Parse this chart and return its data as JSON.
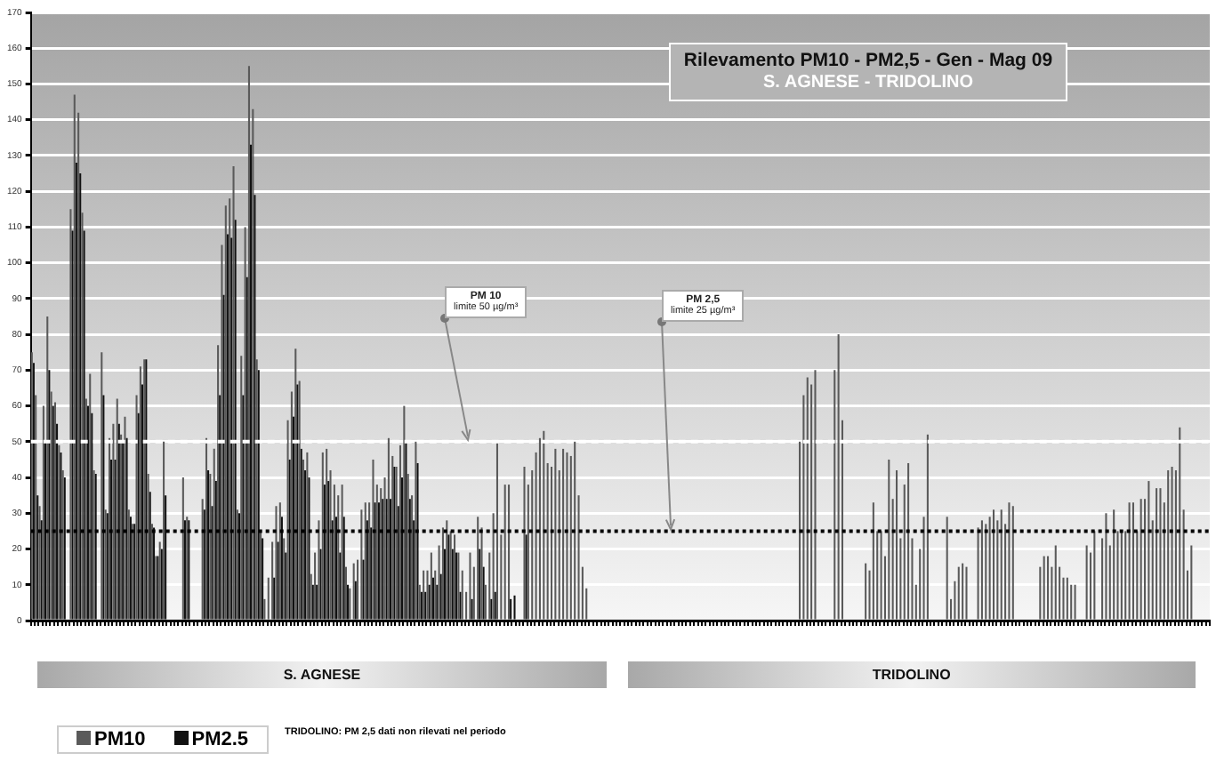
{
  "chart_data": {
    "type": "bar",
    "title": "Rilevamento PM10 - PM2,5 - Gen - Mag 09",
    "subtitle": "S. AGNESE - TRIDOLINO",
    "categories": [
      null,
      null,
      null,
      null,
      null,
      null,
      null,
      null,
      null,
      null,
      null,
      null,
      null,
      null,
      null,
      null,
      null,
      null,
      null,
      null,
      null,
      null,
      null,
      null,
      null,
      null,
      null,
      null,
      null,
      null,
      null,
      null,
      null,
      null,
      null,
      null,
      null,
      null,
      null,
      null,
      null,
      null,
      null,
      null,
      null,
      null,
      null,
      null,
      null,
      null,
      null,
      null,
      null,
      null,
      null,
      null,
      null,
      null,
      null,
      null,
      null,
      null,
      null,
      null,
      null,
      null,
      null,
      null,
      null,
      null,
      null,
      null,
      null,
      null,
      null,
      null,
      null,
      null,
      null,
      null,
      null,
      null,
      null,
      null,
      null,
      null,
      null,
      null,
      null,
      null,
      null,
      null,
      null,
      null,
      null,
      null,
      null,
      null,
      null,
      null,
      null,
      null,
      null,
      null,
      null,
      null,
      null,
      null,
      null,
      null,
      null,
      null,
      null,
      null,
      null,
      null,
      null,
      null,
      null,
      null,
      null,
      null,
      null,
      null,
      null,
      null,
      null,
      null,
      null,
      null,
      null,
      null,
      null,
      null,
      null,
      null,
      null,
      null,
      null,
      null,
      null,
      null,
      null,
      null,
      null,
      null,
      null,
      null,
      null,
      null,
      null,
      null,
      null,
      null,
      null,
      null,
      null,
      null,
      null,
      null,
      null,
      null,
      null,
      null,
      null,
      null,
      null,
      null,
      null,
      null,
      null,
      null,
      null,
      null,
      null,
      null,
      null,
      null,
      null,
      null,
      null,
      null,
      null,
      null,
      null,
      null,
      null,
      null,
      null,
      null,
      null,
      null,
      null,
      null,
      null,
      null,
      null,
      null,
      null,
      null,
      null,
      null,
      null,
      null,
      null,
      null,
      null,
      null,
      null,
      null,
      null,
      null,
      null,
      null,
      null,
      null,
      null,
      null,
      null,
      null,
      null,
      null,
      null,
      null,
      null,
      null,
      null,
      null,
      null,
      null,
      null,
      null,
      null,
      null,
      null,
      null,
      null,
      null,
      null,
      null,
      null,
      null,
      null,
      null,
      null,
      null,
      null,
      null,
      null,
      null,
      null,
      null,
      null,
      null,
      null,
      null,
      null,
      null,
      null,
      null,
      null,
      null,
      null,
      null,
      null,
      null,
      null,
      null,
      null,
      null,
      null,
      null,
      null,
      null,
      null,
      null,
      null,
      null,
      null,
      null,
      null,
      null,
      null,
      null,
      null,
      null,
      null,
      null,
      null,
      null,
      null,
      null,
      null,
      null,
      null,
      null,
      null,
      null,
      null,
      null,
      null,
      null,
      null,
      null
    ],
    "series": [
      {
        "name": "PM10",
        "color": "#5a5a5a",
        "values": [
          75,
          63,
          32,
          60,
          85,
          64,
          61,
          49,
          42,
          null,
          115,
          147,
          142,
          114,
          62,
          69,
          42,
          null,
          75,
          31,
          51,
          55,
          62,
          52,
          57,
          31,
          27,
          63,
          71,
          73,
          41,
          27,
          18,
          22,
          50,
          null,
          null,
          null,
          null,
          40,
          29,
          null,
          null,
          null,
          34,
          51,
          41,
          48,
          77,
          105,
          116,
          118,
          127,
          31,
          74,
          110,
          155,
          143,
          73,
          25,
          6,
          12,
          22,
          32,
          33,
          23,
          56,
          64,
          76,
          67,
          45,
          47,
          13,
          19,
          28,
          47,
          48,
          42,
          38,
          35,
          38,
          15,
          9,
          16,
          17,
          31,
          33,
          33,
          45,
          38,
          37,
          40,
          51,
          46,
          43,
          49,
          60,
          41,
          35,
          50,
          10,
          14,
          14,
          19,
          14,
          21,
          26,
          28,
          25,
          24,
          19,
          14,
          8,
          19,
          15,
          29,
          26,
          10,
          19,
          30,
          50,
          24,
          38,
          38,
          null,
          null,
          null,
          43,
          38,
          42,
          47,
          51,
          53,
          44,
          43,
          48,
          42,
          48,
          47,
          46,
          50,
          35,
          15,
          9,
          null,
          null,
          null,
          null,
          null,
          null,
          null,
          null,
          null,
          null,
          null,
          null,
          null,
          null,
          null,
          null,
          null,
          null,
          null,
          null,
          null,
          null,
          null,
          null,
          null,
          null,
          null,
          null,
          null,
          null,
          null,
          null,
          null,
          null,
          null,
          null,
          null,
          null,
          null,
          null,
          null,
          null,
          null,
          null,
          null,
          null,
          null,
          null,
          null,
          null,
          null,
          null,
          null,
          null,
          50,
          63,
          68,
          66,
          70,
          null,
          null,
          null,
          null,
          70,
          80,
          56,
          null,
          null,
          null,
          null,
          null,
          16,
          14,
          33,
          25,
          25,
          18,
          45,
          34,
          42,
          23,
          38,
          44,
          23,
          10,
          20,
          29,
          52,
          null,
          null,
          null,
          null,
          29,
          6,
          11,
          15,
          16,
          15,
          null,
          null,
          26,
          28,
          27,
          29,
          31,
          28,
          31,
          27,
          33,
          32,
          null,
          null,
          null,
          null,
          null,
          null,
          15,
          18,
          18,
          15,
          21,
          15,
          12,
          12,
          10,
          10,
          null,
          null,
          21,
          19,
          25,
          null,
          23,
          30,
          21,
          31,
          25,
          25,
          25,
          33,
          33,
          25,
          34,
          34,
          39,
          28,
          37,
          37,
          33,
          42,
          43,
          42,
          54,
          31,
          14,
          21,
          null,
          null,
          null,
          null
        ]
      },
      {
        "name": "PM2.5",
        "color": "#111111",
        "values": [
          72,
          35,
          28,
          50,
          70,
          60,
          55,
          47,
          40,
          null,
          109,
          128,
          125,
          109,
          60,
          58,
          41,
          null,
          63,
          30,
          45,
          45,
          55,
          50,
          51,
          29,
          27,
          58,
          66,
          73,
          36,
          26,
          18,
          20,
          35,
          null,
          null,
          null,
          null,
          28,
          28,
          null,
          null,
          null,
          31,
          42,
          32,
          39,
          63,
          91,
          108,
          107,
          112,
          30,
          63,
          96,
          133,
          119,
          70,
          23,
          null,
          null,
          12,
          22,
          29,
          19,
          45,
          57,
          66,
          48,
          42,
          40,
          10,
          10,
          20,
          38,
          39,
          28,
          29,
          19,
          29,
          10,
          null,
          11,
          null,
          17,
          28,
          26,
          33,
          33,
          34,
          34,
          34,
          43,
          32,
          40,
          50,
          34,
          28,
          44,
          8,
          8,
          10,
          12,
          10,
          13,
          20,
          24,
          20,
          19,
          8,
          null,
          null,
          6,
          null,
          20,
          15,
          null,
          6,
          8,
          null,
          null,
          null,
          6,
          7,
          null,
          null,
          24,
          null,
          null,
          null,
          null,
          null,
          null,
          null,
          null,
          null,
          null,
          null,
          null,
          null,
          null,
          null,
          null,
          null,
          null,
          null,
          null,
          null,
          null,
          null,
          null,
          null,
          null,
          null,
          null,
          null,
          null,
          null,
          null,
          null,
          null,
          null,
          null,
          null,
          null,
          null,
          null,
          null,
          null,
          null,
          null,
          null,
          null,
          null,
          null,
          null,
          null,
          null,
          null,
          null,
          null,
          null,
          null,
          null,
          null,
          null,
          null,
          null,
          null,
          null,
          null,
          null,
          null,
          null,
          null,
          null,
          null,
          null,
          null,
          null,
          null,
          null,
          null,
          null,
          null,
          null,
          null,
          null,
          null,
          null,
          null,
          null,
          null,
          null,
          null,
          null,
          null,
          null,
          null,
          null,
          null,
          null,
          null,
          null,
          null,
          null,
          null,
          null,
          null,
          null,
          null,
          null,
          null,
          null,
          null,
          null,
          null,
          null,
          null,
          null,
          null,
          null,
          null,
          null,
          null,
          null,
          null,
          null,
          null,
          null,
          null,
          null,
          null,
          null,
          null,
          null,
          null,
          null,
          null,
          null,
          null,
          null,
          null,
          null,
          null,
          null,
          null,
          null,
          null,
          null,
          null,
          null,
          null,
          null,
          null,
          null,
          null,
          null,
          null,
          null,
          null,
          null,
          null,
          null,
          null,
          null,
          null,
          null,
          null,
          null,
          null,
          null,
          null,
          null,
          null,
          null,
          null,
          null,
          null,
          null,
          null,
          null,
          null
        ]
      }
    ],
    "ylim": [
      0,
      170
    ],
    "yticks": [
      0,
      10,
      20,
      30,
      40,
      50,
      60,
      70,
      80,
      90,
      100,
      110,
      120,
      130,
      140,
      150,
      160,
      170
    ],
    "grid": "y",
    "legend": "bottom left",
    "tick_labels": "y",
    "ref_lines": [
      {
        "axis": "y",
        "value": 50,
        "label": "PM 10\nlimite 50 µg/m³",
        "color": "#ffffff",
        "line_style": "dashed"
      },
      {
        "axis": "y",
        "value": 25,
        "label": "PM 2,5\nlimite 25 µg/m³",
        "color": "#000000",
        "line_style": "dotted"
      }
    ],
    "annotations": [
      "S. AGNESE",
      "TRIDOLINO",
      "TRIDOLINO: PM 2,5 dati non rilevati nel periodo"
    ]
  }
}
